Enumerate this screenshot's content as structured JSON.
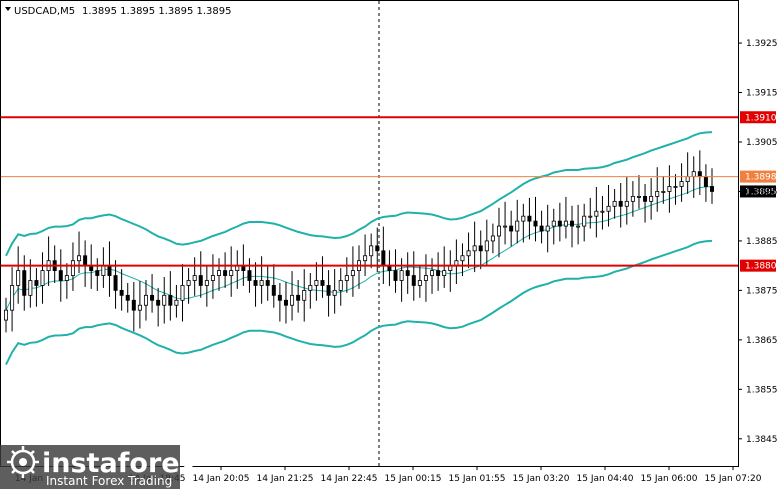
{
  "header": {
    "symbol": "USDCAD,M5",
    "ohlc": "1.3895 1.3895 1.3895 1.3895"
  },
  "colors": {
    "bollinger": "#20b2aa",
    "resistance": "#e00000",
    "current_price_line": "#f08040",
    "price_label_bg": "#000000",
    "candle": "#000000"
  },
  "chart_data": {
    "type": "candlestick",
    "symbol": "USDCAD",
    "timeframe": "M5",
    "ylim": [
      1.38395,
      1.39335
    ],
    "y_ticks": [
      "1.3925",
      "1.3915",
      "1.3905",
      "1.3895",
      "1.3885",
      "1.3875",
      "1.3865",
      "1.3855",
      "1.3845"
    ],
    "x_ticks": [
      "14 Jan 20:05",
      "14 Jan 21:25",
      "14 Jan 22:45",
      "15 Jan 00:15",
      "15 Jan 01:55",
      "15 Jan 03:20",
      "15 Jan 04:40",
      "15 Jan 06:00",
      "15 Jan 07:20"
    ],
    "x_ticks_partial": [
      "14 Jan",
      "14 Jan 18:45"
    ],
    "levels": [
      {
        "value": 1.391,
        "label": "1.3910",
        "style": "resistance"
      },
      {
        "value": 1.3898,
        "label": "1.3898",
        "style": "current"
      },
      {
        "value": 1.388,
        "label": "1.3880",
        "style": "resistance"
      }
    ],
    "last_price": {
      "value": 1.3895,
      "label": "1.3895"
    },
    "vertical_marker_time": "14 Jan 23:40",
    "closes": [
      1.3871,
      1.3876,
      1.3879,
      1.3874,
      1.3877,
      1.3876,
      1.3879,
      1.3881,
      1.3879,
      1.3877,
      1.3878,
      1.3881,
      1.3882,
      1.388,
      1.3879,
      1.3878,
      1.388,
      1.3878,
      1.3875,
      1.3874,
      1.3873,
      1.3871,
      1.3872,
      1.3874,
      1.3873,
      1.3872,
      1.3874,
      1.3872,
      1.3873,
      1.3876,
      1.3877,
      1.3878,
      1.3876,
      1.3877,
      1.3878,
      1.3879,
      1.3878,
      1.3879,
      1.388,
      1.3879,
      1.3877,
      1.3876,
      1.3877,
      1.3876,
      1.3874,
      1.3873,
      1.3872,
      1.3874,
      1.3873,
      1.3875,
      1.3876,
      1.3877,
      1.3876,
      1.3874,
      1.3875,
      1.3877,
      1.3878,
      1.3879,
      1.3881,
      1.3882,
      1.3884,
      1.3883,
      1.388,
      1.3879,
      1.3877,
      1.3879,
      1.3878,
      1.3876,
      1.3877,
      1.3878,
      1.3879,
      1.3878,
      1.3879,
      1.388,
      1.3881,
      1.3882,
      1.3883,
      1.3884,
      1.3883,
      1.3885,
      1.3886,
      1.3888,
      1.3888,
      1.3887,
      1.3889,
      1.389,
      1.3889,
      1.3888,
      1.3887,
      1.3888,
      1.3889,
      1.3888,
      1.3889,
      1.3888,
      1.3888,
      1.389,
      1.389,
      1.3891,
      1.3891,
      1.3892,
      1.3893,
      1.3892,
      1.3893,
      1.3894,
      1.3894,
      1.3893,
      1.3894,
      1.3895,
      1.3895,
      1.3896,
      1.3896,
      1.3897,
      1.3898,
      1.3899,
      1.3898,
      1.3896,
      1.3895
    ]
  },
  "branding": {
    "name": "instaforex",
    "tagline": "Instant Forex Trading"
  }
}
